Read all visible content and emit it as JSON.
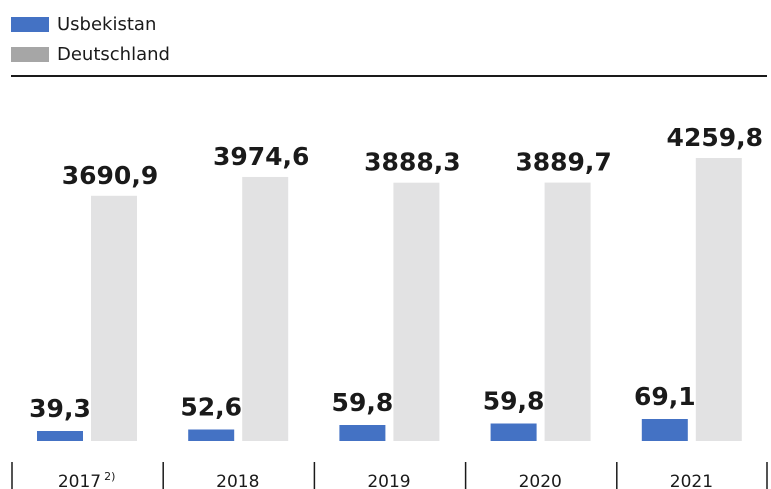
{
  "chart_data": {
    "type": "bar",
    "categories": [
      "2017",
      "2018",
      "2019",
      "2020",
      "2021"
    ],
    "category_notes": [
      "2)",
      "",
      "",
      "",
      ""
    ],
    "series": [
      {
        "name": "Usbekistan",
        "color": "#4472c4",
        "values": [
          39.3,
          52.6,
          59.8,
          59.8,
          69.1
        ],
        "labels": [
          "39,3",
          "52,6",
          "59,8",
          "59,8",
          "69,1"
        ]
      },
      {
        "name": "Deutschland",
        "color": "#e2e2e3",
        "values": [
          3690.9,
          3974.6,
          3888.3,
          3889.7,
          4259.8
        ],
        "labels": [
          "3690,9",
          "3974,6",
          "3888,3",
          "3889,7",
          "4259,8"
        ]
      }
    ],
    "ylim": [
      0,
      4259.8
    ],
    "legend_position": "top-left",
    "grid": false
  },
  "legend": {
    "items": [
      {
        "label": "Usbekistan",
        "color": "#4472c4"
      },
      {
        "label": "Deutschland",
        "color": "#a6a6a6"
      }
    ]
  }
}
